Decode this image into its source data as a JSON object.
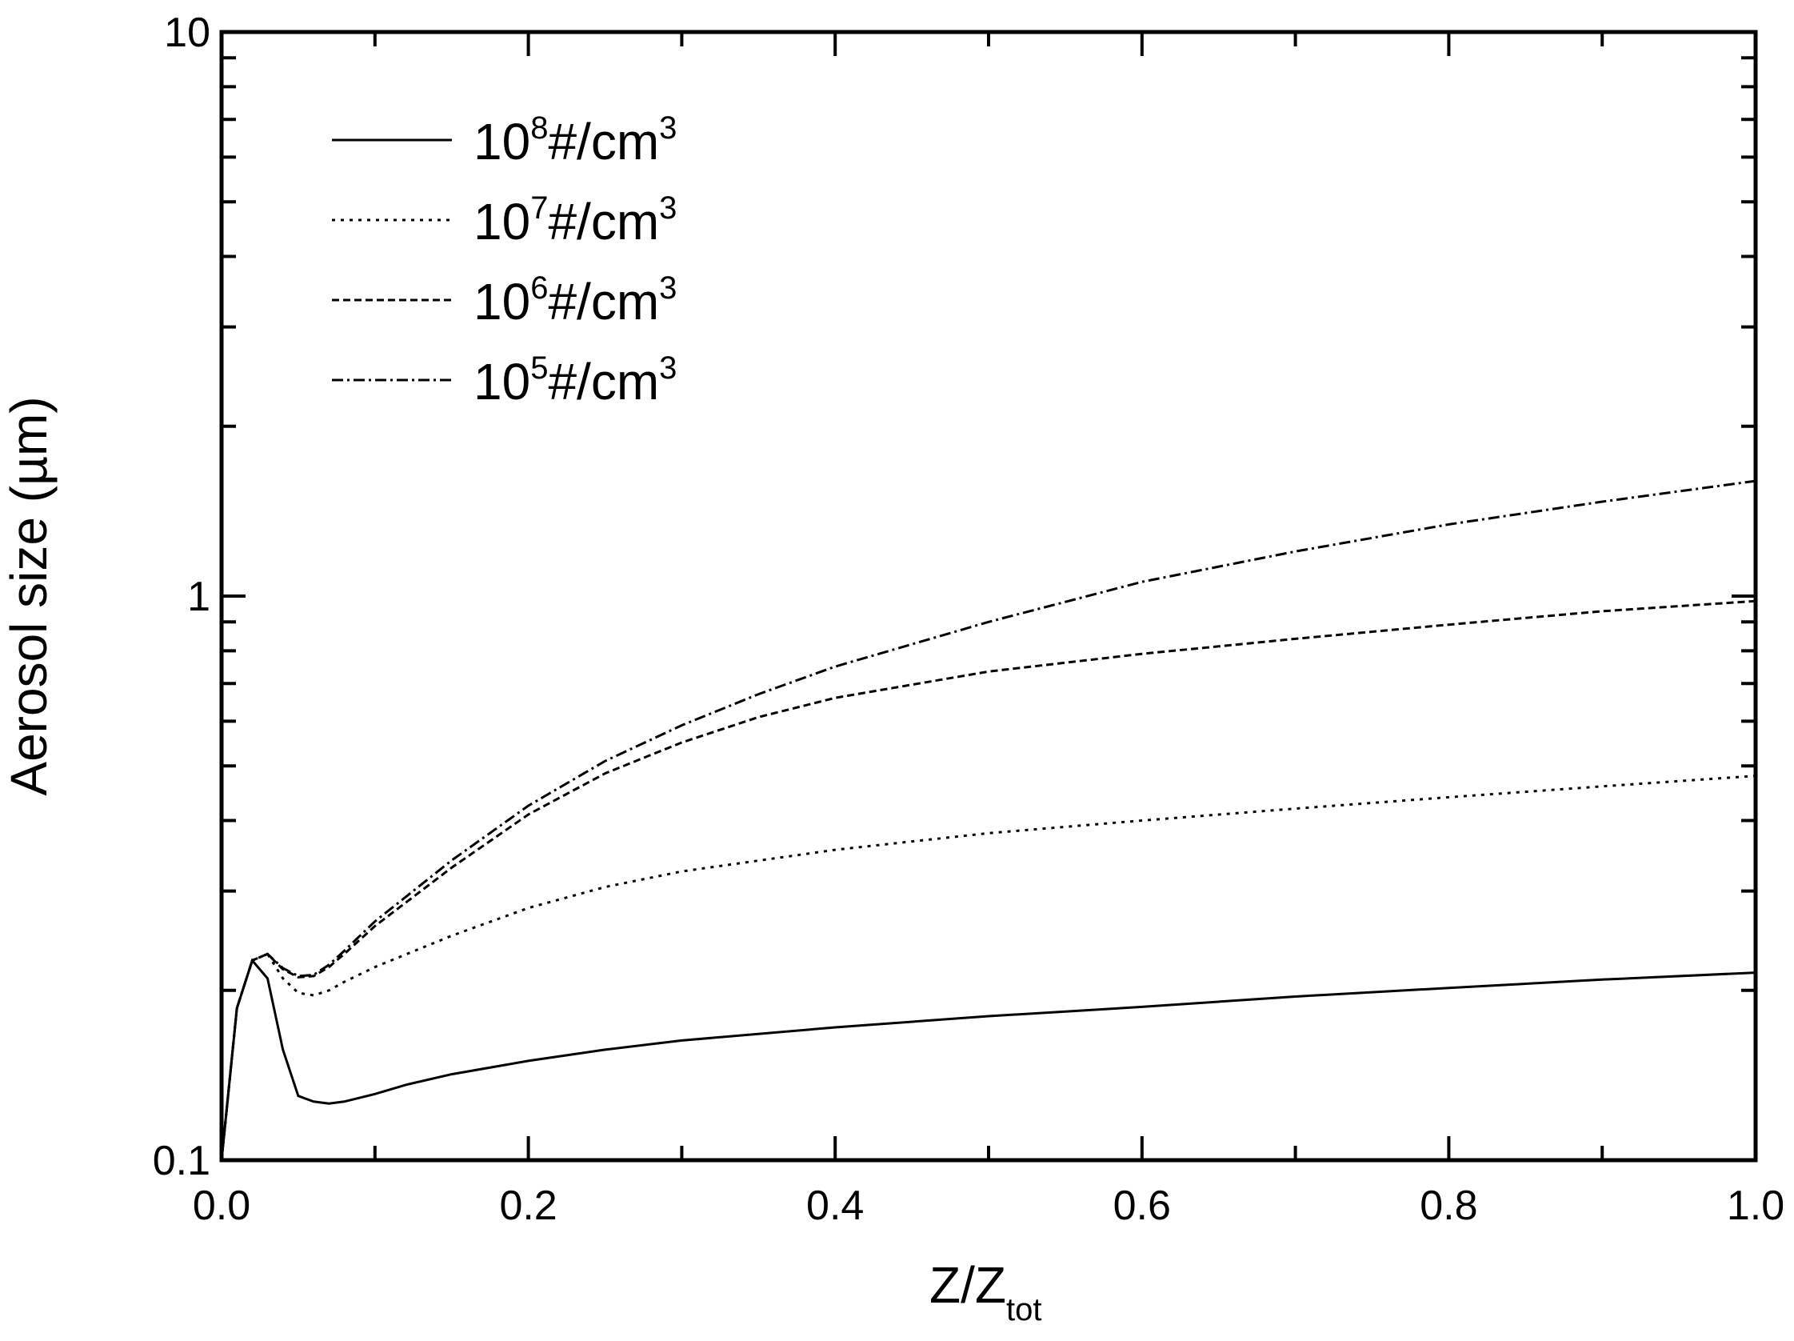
{
  "chart_data": {
    "type": "line",
    "xlabel": "Z/Z",
    "xlabel_subscript": "tot",
    "ylabel": "Aerosol size (µm)",
    "xlim": [
      0.0,
      1.0
    ],
    "ylim": [
      0.1,
      10
    ],
    "y_scale": "log",
    "x_ticks": [
      "0.0",
      "0.2",
      "0.4",
      "0.6",
      "0.8",
      "1.0"
    ],
    "y_ticks": [
      "0.1",
      "1",
      "10"
    ],
    "grid": false,
    "legend_position": "top-left",
    "series": [
      {
        "name_base": "10",
        "name_exp": "8",
        "name_rest": "#/cm",
        "name_unit_exp": "3",
        "dash": "solid",
        "x": [
          0,
          0.01,
          0.02,
          0.03,
          0.04,
          0.05,
          0.06,
          0.07,
          0.08,
          0.1,
          0.12,
          0.15,
          0.2,
          0.25,
          0.3,
          0.4,
          0.5,
          0.6,
          0.7,
          0.8,
          0.9,
          1.0
        ],
        "y": [
          0.1,
          0.186,
          0.226,
          0.21,
          0.157,
          0.13,
          0.127,
          0.126,
          0.127,
          0.131,
          0.136,
          0.142,
          0.15,
          0.157,
          0.163,
          0.172,
          0.18,
          0.187,
          0.195,
          0.202,
          0.209,
          0.215
        ]
      },
      {
        "name_base": "10",
        "name_exp": "7",
        "name_rest": "#/cm",
        "name_unit_exp": "3",
        "dash": "dot",
        "x": [
          0,
          0.01,
          0.02,
          0.03,
          0.04,
          0.05,
          0.06,
          0.07,
          0.08,
          0.1,
          0.15,
          0.2,
          0.25,
          0.3,
          0.4,
          0.5,
          0.6,
          0.7,
          0.8,
          0.9,
          1.0
        ],
        "y": [
          0.1,
          0.186,
          0.226,
          0.232,
          0.21,
          0.198,
          0.196,
          0.2,
          0.207,
          0.22,
          0.25,
          0.28,
          0.305,
          0.325,
          0.355,
          0.38,
          0.4,
          0.42,
          0.44,
          0.46,
          0.48
        ]
      },
      {
        "name_base": "10",
        "name_exp": "6",
        "name_rest": "#/cm",
        "name_unit_exp": "3",
        "dash": "dash",
        "x": [
          0,
          0.01,
          0.02,
          0.03,
          0.04,
          0.05,
          0.06,
          0.07,
          0.08,
          0.1,
          0.15,
          0.2,
          0.25,
          0.3,
          0.35,
          0.4,
          0.5,
          0.6,
          0.7,
          0.8,
          0.9,
          1.0
        ],
        "y": [
          0.1,
          0.186,
          0.226,
          0.232,
          0.218,
          0.211,
          0.212,
          0.22,
          0.232,
          0.26,
          0.33,
          0.41,
          0.485,
          0.55,
          0.61,
          0.66,
          0.735,
          0.79,
          0.84,
          0.89,
          0.94,
          0.98
        ]
      },
      {
        "name_base": "10",
        "name_exp": "5",
        "name_rest": "#/cm",
        "name_unit_exp": "3",
        "dash": "dashdot",
        "x": [
          0,
          0.01,
          0.02,
          0.03,
          0.04,
          0.05,
          0.06,
          0.07,
          0.08,
          0.1,
          0.15,
          0.2,
          0.25,
          0.3,
          0.35,
          0.4,
          0.5,
          0.6,
          0.7,
          0.8,
          0.9,
          1.0
        ],
        "y": [
          0.1,
          0.186,
          0.226,
          0.232,
          0.219,
          0.212,
          0.213,
          0.222,
          0.235,
          0.265,
          0.34,
          0.425,
          0.51,
          0.59,
          0.67,
          0.75,
          0.9,
          1.06,
          1.2,
          1.34,
          1.47,
          1.6
        ]
      }
    ]
  }
}
